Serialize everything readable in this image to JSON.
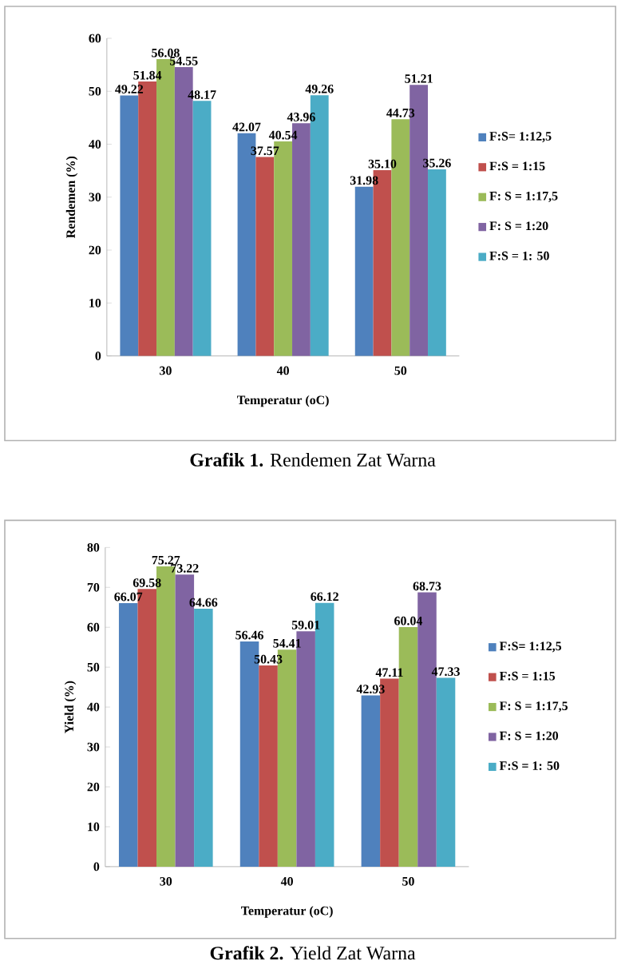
{
  "chart_data": [
    {
      "type": "bar",
      "xlabel": "Temperatur (oC)",
      "ylabel": "Rendemen (%)",
      "categories": [
        "30",
        "40",
        "50"
      ],
      "ylim": [
        0,
        60
      ],
      "yticks": [
        0,
        10,
        20,
        30,
        40,
        50,
        60
      ],
      "legend": "right",
      "annotations": [
        "**Grafik 1.** Rendemen Zat Warna"
      ],
      "series": [
        {
          "name": "F:S= 1:12,5",
          "color": "#4f81bd",
          "values": [
            49.22,
            42.07,
            31.98
          ],
          "value_labels": [
            "49.22",
            "42.07",
            "31.98"
          ]
        },
        {
          "name": "F:S = 1:15",
          "color": "#c0504d",
          "values": [
            51.84,
            37.57,
            35.1
          ],
          "value_labels": [
            "51.84",
            "37.57",
            "35.10"
          ]
        },
        {
          "name": "F: S = 1:17,5",
          "color": "#9bbb59",
          "values": [
            56.08,
            40.54,
            44.73
          ],
          "value_labels": [
            "56.08",
            "40.54",
            "44.73"
          ]
        },
        {
          "name": "F: S = 1:20",
          "color": "#8064a2",
          "values": [
            54.55,
            43.96,
            51.21
          ],
          "value_labels": [
            "54.55",
            "43.96",
            "51.21"
          ]
        },
        {
          "name": "F:S = 1: 50",
          "color": "#4bacc6",
          "values": [
            48.17,
            49.26,
            35.26
          ],
          "value_labels": [
            "48.17",
            "49.26",
            "35.26"
          ]
        }
      ]
    },
    {
      "type": "bar",
      "xlabel": "Temperatur (oC)",
      "ylabel": "Yield (%)",
      "categories": [
        "30",
        "40",
        "50"
      ],
      "ylim": [
        0,
        80
      ],
      "yticks": [
        0,
        10,
        20,
        30,
        40,
        50,
        60,
        70,
        80
      ],
      "legend": "right",
      "annotations": [
        "**Grafik 2.** Yield Zat Warna"
      ],
      "series": [
        {
          "name": "F:S= 1:12,5",
          "color": "#4f81bd",
          "values": [
            66.07,
            56.46,
            42.93
          ],
          "value_labels": [
            "66.07",
            "56.46",
            "42.93"
          ]
        },
        {
          "name": "F:S = 1:15",
          "color": "#c0504d",
          "values": [
            69.58,
            50.43,
            47.11
          ],
          "value_labels": [
            "69.58",
            "50.43",
            "47.11"
          ]
        },
        {
          "name": "F: S = 1:17,5",
          "color": "#9bbb59",
          "values": [
            75.27,
            54.41,
            60.04
          ],
          "value_labels": [
            "75.27",
            "54.41",
            "60.04"
          ]
        },
        {
          "name": "F: S = 1:20",
          "color": "#8064a2",
          "values": [
            73.22,
            59.01,
            68.73
          ],
          "value_labels": [
            "73.22",
            "59.01",
            "68.73"
          ]
        },
        {
          "name": "F:S = 1: 50",
          "color": "#4bacc6",
          "values": [
            64.66,
            66.12,
            47.33
          ],
          "value_labels": [
            "64.66",
            "66.12",
            "47.33"
          ]
        }
      ]
    }
  ]
}
